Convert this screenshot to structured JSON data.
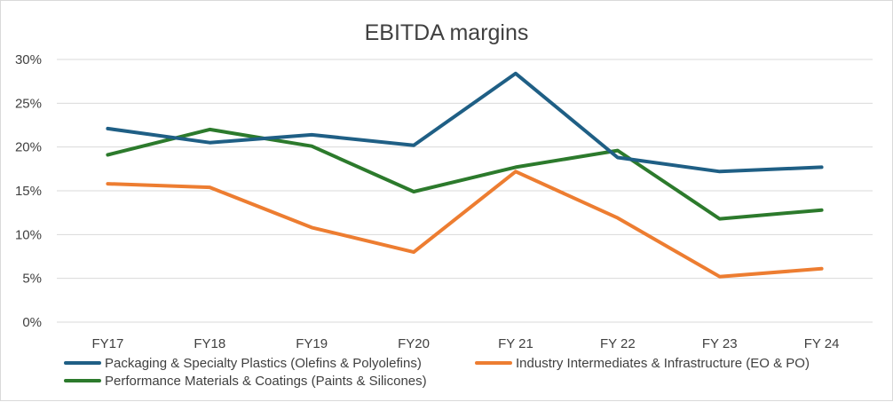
{
  "chart_data": {
    "type": "line",
    "title": "EBITDA margins",
    "xlabel": "",
    "ylabel": "",
    "categories": [
      "FY17",
      "FY18",
      "FY19",
      "FY20",
      "FY 21",
      "FY 22",
      "FY 23",
      "FY 24"
    ],
    "ylim": [
      0,
      30
    ],
    "yticks": [
      0,
      5,
      10,
      15,
      20,
      25,
      30
    ],
    "ytick_labels": [
      "0%",
      "5%",
      "10%",
      "15%",
      "20%",
      "25%",
      "30%"
    ],
    "grid": true,
    "legend_position": "bottom",
    "series": [
      {
        "name": "Packaging & Specialty Plastics (Olefins & Polyolefins)",
        "color": "#1f5f85",
        "values": [
          22.1,
          20.5,
          21.4,
          20.2,
          28.4,
          18.8,
          17.2,
          17.7
        ]
      },
      {
        "name": "Industry Intermediates & Infrastructure (EO & PO)",
        "color": "#ed7d31",
        "values": [
          15.8,
          15.4,
          10.8,
          8.0,
          17.2,
          11.9,
          5.2,
          6.1
        ]
      },
      {
        "name": "Performance Materials & Coatings (Paints & Silicones)",
        "color": "#2c7a2c",
        "values": [
          19.1,
          22.0,
          20.1,
          14.9,
          17.7,
          19.6,
          11.8,
          12.8
        ]
      }
    ]
  }
}
